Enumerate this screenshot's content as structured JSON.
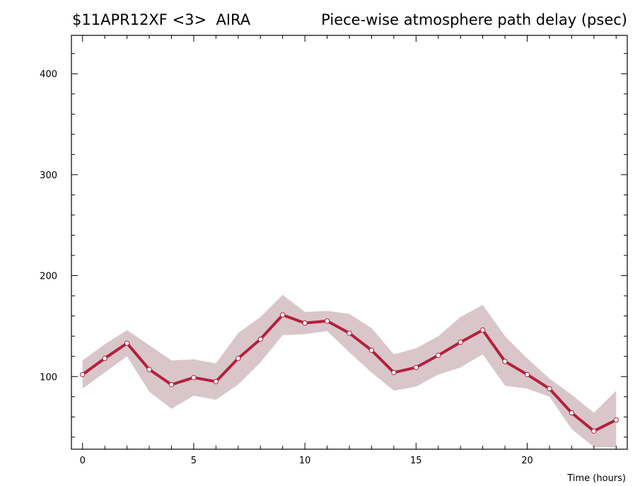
{
  "header": {
    "title_left": "$11APR12XF <3>  AIRA",
    "title_right": "Piece-wise atmosphere path delay (psec)"
  },
  "chart_data": {
    "type": "line",
    "title": "Piece-wise atmosphere path delay (psec)",
    "subtitle": "$11APR12XF <3>  AIRA",
    "xlabel": "Time (hours)",
    "ylabel": "",
    "xlim": [
      -0.5,
      24.5
    ],
    "ylim": [
      28,
      438
    ],
    "x_ticks": [
      0,
      5,
      10,
      15,
      20
    ],
    "y_ticks": [
      100,
      200,
      300,
      400
    ],
    "grid": false,
    "x": [
      0,
      1,
      2,
      3,
      4,
      5,
      6,
      7,
      8,
      9,
      10,
      11,
      12,
      13,
      14,
      15,
      16,
      17,
      18,
      19,
      20,
      21,
      22,
      23,
      24
    ],
    "series": [
      {
        "values": [
          102,
          118,
          133,
          107,
          92,
          99,
          95,
          118,
          137,
          161,
          153,
          155,
          143,
          126,
          104,
          109,
          121,
          134,
          146,
          115,
          102,
          88,
          64,
          46,
          57
        ],
        "upper": [
          116,
          132,
          146,
          131,
          116,
          117,
          113,
          143,
          159,
          181,
          164,
          165,
          162,
          148,
          122,
          128,
          140,
          159,
          171,
          140,
          118,
          98,
          82,
          64,
          86
        ],
        "lower": [
          88,
          104,
          120,
          85,
          68,
          81,
          77,
          92,
          114,
          141,
          142,
          145,
          124,
          104,
          86,
          90,
          102,
          109,
          122,
          91,
          88,
          80,
          48,
          30,
          30
        ]
      }
    ],
    "colors": {
      "line": "#b3203e",
      "band": "#d9c6ca",
      "marker_fill": "#ffffff"
    }
  }
}
